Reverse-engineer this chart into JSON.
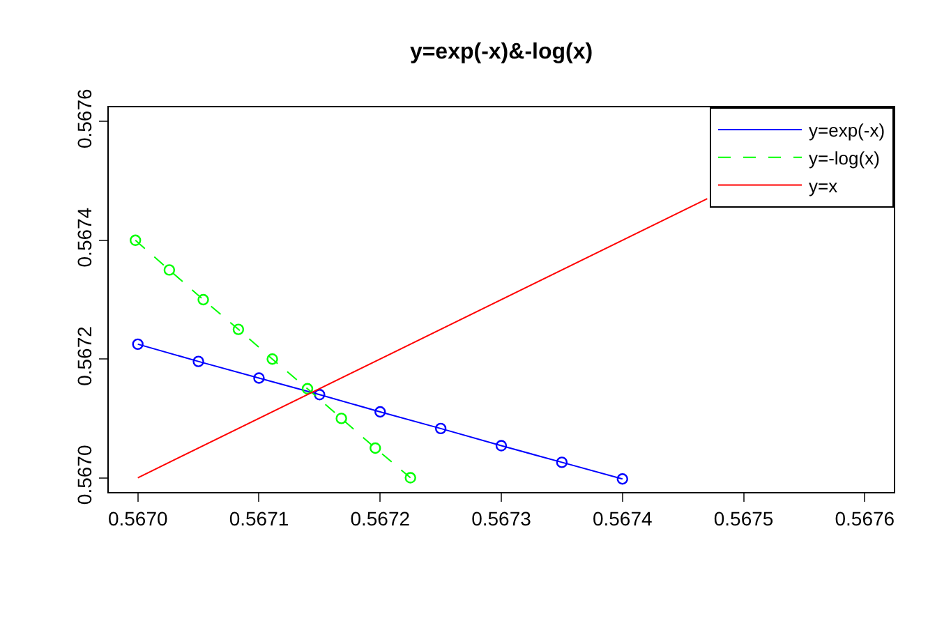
{
  "chart_data": {
    "type": "line",
    "title": "y=exp(-x)&-log(x)",
    "series": [
      {
        "name": "y=exp(-x)",
        "color": "#0000ff",
        "marker": "circle",
        "line_style": "solid",
        "x": [
          0.567,
          0.56705,
          0.5671,
          0.56715,
          0.5672,
          0.56725,
          0.5673,
          0.56735,
          0.5674
        ],
        "values": [
          0.567225,
          0.567196,
          0.567168,
          0.56714,
          0.567111,
          0.567083,
          0.567054,
          0.567026,
          0.566998
        ]
      },
      {
        "name": "y=-log(x)",
        "color": "#00ff00",
        "marker": "circle",
        "line_style": "dashed",
        "x": [
          0.566998,
          0.567026,
          0.567054,
          0.567083,
          0.567111,
          0.56714,
          0.567168,
          0.567196,
          0.567225
        ],
        "values": [
          0.5674,
          0.56735,
          0.5673,
          0.56725,
          0.5672,
          0.56715,
          0.5671,
          0.56705,
          0.567
        ]
      },
      {
        "name": "y=x",
        "color": "#ff0000",
        "marker": "none",
        "line_style": "solid",
        "x": [
          0.567,
          0.56747
        ],
        "values": [
          0.567,
          0.56747
        ]
      }
    ],
    "xlim": [
      0.566976,
      0.567624
    ],
    "ylim": [
      0.566976,
      0.567624
    ],
    "xticks": [
      {
        "value": 0.567,
        "label": "0.5670"
      },
      {
        "value": 0.5671,
        "label": "0.5671"
      },
      {
        "value": 0.5672,
        "label": "0.5672"
      },
      {
        "value": 0.5673,
        "label": "0.5673"
      },
      {
        "value": 0.5674,
        "label": "0.5674"
      },
      {
        "value": 0.5675,
        "label": "0.5675"
      },
      {
        "value": 0.5676,
        "label": "0.5676"
      }
    ],
    "yticks": [
      {
        "value": 0.567,
        "label": "0.5670"
      },
      {
        "value": 0.5672,
        "label": "0.5672"
      },
      {
        "value": 0.5674,
        "label": "0.5674"
      },
      {
        "value": 0.5676,
        "label": "0.5676"
      }
    ],
    "legend": "top right"
  }
}
